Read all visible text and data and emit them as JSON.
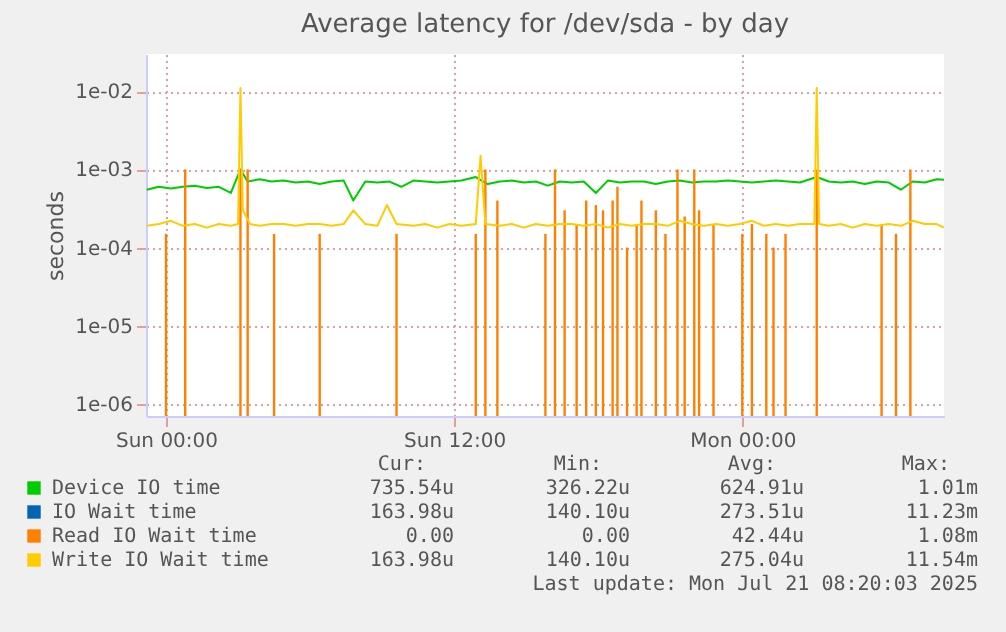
{
  "chart_data": {
    "type": "line",
    "title": "Average latency for /dev/sda - by day",
    "ylabel": "seconds",
    "log": "y",
    "grid": true,
    "legend": "bottom",
    "line_style": "solid",
    "marker": "none",
    "xlim": [
      "2025-07-19T23:10",
      "2025-07-21T08:24"
    ],
    "xticks": [
      {
        "value": "2025-07-20T00:00",
        "label": "Sun 00:00"
      },
      {
        "value": "2025-07-20T12:00",
        "label": "Sun 12:00"
      },
      {
        "value": "2025-07-21T00:00",
        "label": "Mon 00:00"
      }
    ],
    "ylim": [
      7e-07,
      0.03
    ],
    "yticks": [
      {
        "value": 1e-06,
        "label": "1e-06"
      },
      {
        "value": 1e-05,
        "label": "1e-05"
      },
      {
        "value": 0.0001,
        "label": "1e-04"
      },
      {
        "value": 0.001,
        "label": "1e-03"
      },
      {
        "value": 0.01,
        "label": "1e-02"
      }
    ],
    "series": [
      {
        "name": "Device IO time",
        "color": "#00cc00",
        "x": [
          "2025-07-19T23:12",
          "2025-07-19T23:42",
          "2025-07-20T00:12",
          "2025-07-20T00:42",
          "2025-07-20T01:12",
          "2025-07-20T01:42",
          "2025-07-20T02:12",
          "2025-07-20T02:42",
          "2025-07-20T03:06",
          "2025-07-20T03:24",
          "2025-07-20T03:54",
          "2025-07-20T04:24",
          "2025-07-20T04:54",
          "2025-07-20T05:24",
          "2025-07-20T05:54",
          "2025-07-20T06:24",
          "2025-07-20T06:54",
          "2025-07-20T07:24",
          "2025-07-20T07:48",
          "2025-07-20T08:18",
          "2025-07-20T08:48",
          "2025-07-20T09:18",
          "2025-07-20T09:48",
          "2025-07-20T10:18",
          "2025-07-20T10:48",
          "2025-07-20T11:18",
          "2025-07-20T11:48",
          "2025-07-20T12:18",
          "2025-07-20T12:54",
          "2025-07-20T13:24",
          "2025-07-20T13:54",
          "2025-07-20T14:24",
          "2025-07-20T14:54",
          "2025-07-20T15:24",
          "2025-07-20T15:54",
          "2025-07-20T16:24",
          "2025-07-20T16:54",
          "2025-07-20T17:24",
          "2025-07-20T17:54",
          "2025-07-20T18:24",
          "2025-07-20T18:54",
          "2025-07-20T19:24",
          "2025-07-20T19:54",
          "2025-07-20T20:24",
          "2025-07-20T20:54",
          "2025-07-20T21:24",
          "2025-07-20T21:54",
          "2025-07-20T22:24",
          "2025-07-20T22:54",
          "2025-07-20T23:24",
          "2025-07-20T23:54",
          "2025-07-21T00:24",
          "2025-07-21T00:54",
          "2025-07-21T01:24",
          "2025-07-21T01:54",
          "2025-07-21T02:24",
          "2025-07-21T03:06",
          "2025-07-21T03:36",
          "2025-07-21T04:06",
          "2025-07-21T04:36",
          "2025-07-21T05:06",
          "2025-07-21T05:36",
          "2025-07-21T06:06",
          "2025-07-21T06:36",
          "2025-07-21T07:06",
          "2025-07-21T07:36",
          "2025-07-21T08:06",
          "2025-07-21T08:24"
        ],
        "values": [
          0.00055,
          0.0006,
          0.00057,
          0.0006,
          0.00062,
          0.00058,
          0.0006,
          0.0005,
          0.001,
          0.0007,
          0.00075,
          0.0007,
          0.00072,
          0.00068,
          0.0007,
          0.00065,
          0.0007,
          0.00072,
          0.0004,
          0.0007,
          0.00068,
          0.0007,
          0.0006,
          0.00072,
          0.0007,
          0.00068,
          0.0007,
          0.00072,
          0.0008,
          0.00065,
          0.0007,
          0.00072,
          0.00068,
          0.0007,
          0.00062,
          0.0007,
          0.00068,
          0.0007,
          0.0005,
          0.00072,
          0.00068,
          0.0007,
          0.0007,
          0.00065,
          0.0007,
          0.00072,
          0.00068,
          0.0007,
          0.0007,
          0.00072,
          0.0007,
          0.00068,
          0.0007,
          0.00072,
          0.0007,
          0.00068,
          0.0008,
          0.0007,
          0.00068,
          0.0007,
          0.00065,
          0.0007,
          0.00068,
          0.00055,
          0.0007,
          0.00068,
          0.00075,
          0.00074
        ]
      },
      {
        "name": "IO Wait time",
        "color": "#0066b3"
      },
      {
        "name": "Read IO Wait time",
        "color": "#ff8000",
        "type": "bar",
        "x": [
          "2025-07-20T00:00",
          "2025-07-20T00:48",
          "2025-07-20T03:06",
          "2025-07-20T03:24",
          "2025-07-20T04:30",
          "2025-07-20T06:24",
          "2025-07-20T09:36",
          "2025-07-20T12:54",
          "2025-07-20T13:18",
          "2025-07-20T13:48",
          "2025-07-20T15:48",
          "2025-07-20T16:12",
          "2025-07-20T16:36",
          "2025-07-20T17:06",
          "2025-07-20T17:30",
          "2025-07-20T17:54",
          "2025-07-20T18:12",
          "2025-07-20T18:36",
          "2025-07-20T18:48",
          "2025-07-20T19:12",
          "2025-07-20T19:36",
          "2025-07-20T19:48",
          "2025-07-20T20:24",
          "2025-07-20T20:48",
          "2025-07-20T21:18",
          "2025-07-20T21:36",
          "2025-07-20T22:00",
          "2025-07-20T22:12",
          "2025-07-20T22:48",
          "2025-07-21T00:00",
          "2025-07-21T00:24",
          "2025-07-21T01:00",
          "2025-07-21T01:18",
          "2025-07-21T01:48",
          "2025-07-21T03:06",
          "2025-07-21T05:48",
          "2025-07-21T06:24",
          "2025-07-21T07:00"
        ],
        "values": [
          0.00015,
          0.001,
          0.001,
          0.001,
          0.00015,
          0.00015,
          0.00015,
          0.00015,
          0.001,
          0.0004,
          0.00015,
          0.001,
          0.0003,
          0.0002,
          0.0004,
          0.00035,
          0.0003,
          0.0004,
          0.0006,
          0.0001,
          0.0002,
          0.0004,
          0.0003,
          0.00015,
          0.001,
          0.00025,
          0.001,
          0.0003,
          0.0002,
          0.00015,
          0.0002,
          0.00015,
          0.0001,
          0.00015,
          0.001,
          0.0002,
          0.00015,
          0.001
        ]
      },
      {
        "name": "Write IO Wait time",
        "color": "#ffcc00",
        "x": [
          "2025-07-19T23:12",
          "2025-07-19T23:42",
          "2025-07-20T00:12",
          "2025-07-20T00:42",
          "2025-07-20T01:12",
          "2025-07-20T01:42",
          "2025-07-20T02:12",
          "2025-07-20T02:42",
          "2025-07-20T03:00",
          "2025-07-20T03:06",
          "2025-07-20T03:12",
          "2025-07-20T03:30",
          "2025-07-20T03:54",
          "2025-07-20T04:24",
          "2025-07-20T04:54",
          "2025-07-20T05:24",
          "2025-07-20T05:54",
          "2025-07-20T06:24",
          "2025-07-20T06:54",
          "2025-07-20T07:24",
          "2025-07-20T07:48",
          "2025-07-20T08:18",
          "2025-07-20T08:48",
          "2025-07-20T09:12",
          "2025-07-20T09:36",
          "2025-07-20T10:18",
          "2025-07-20T10:48",
          "2025-07-20T11:18",
          "2025-07-20T11:48",
          "2025-07-20T12:18",
          "2025-07-20T12:54",
          "2025-07-20T13:06",
          "2025-07-20T13:18",
          "2025-07-20T13:54",
          "2025-07-20T14:24",
          "2025-07-20T14:54",
          "2025-07-20T15:24",
          "2025-07-20T15:54",
          "2025-07-20T16:24",
          "2025-07-20T16:54",
          "2025-07-20T17:24",
          "2025-07-20T17:54",
          "2025-07-20T18:24",
          "2025-07-20T18:54",
          "2025-07-20T19:24",
          "2025-07-20T19:54",
          "2025-07-20T20:24",
          "2025-07-20T20:54",
          "2025-07-20T21:24",
          "2025-07-20T21:54",
          "2025-07-20T22:24",
          "2025-07-20T22:54",
          "2025-07-20T23:24",
          "2025-07-20T23:54",
          "2025-07-21T00:24",
          "2025-07-21T00:54",
          "2025-07-21T01:24",
          "2025-07-21T01:54",
          "2025-07-21T02:24",
          "2025-07-21T03:00",
          "2025-07-21T03:06",
          "2025-07-21T03:12",
          "2025-07-21T03:36",
          "2025-07-21T04:06",
          "2025-07-21T04:36",
          "2025-07-21T05:06",
          "2025-07-21T05:36",
          "2025-07-21T06:06",
          "2025-07-21T06:36",
          "2025-07-21T07:06",
          "2025-07-21T07:36",
          "2025-07-21T08:06",
          "2025-07-21T08:24"
        ],
        "values": [
          0.00019,
          0.0002,
          0.00022,
          0.00019,
          0.0002,
          0.00018,
          0.0002,
          0.00019,
          0.0002,
          0.011,
          0.0003,
          0.0002,
          0.00019,
          0.0002,
          0.0002,
          0.00019,
          0.0002,
          0.0002,
          0.00019,
          0.0002,
          0.0003,
          0.0002,
          0.00019,
          0.00035,
          0.0002,
          0.00019,
          0.0002,
          0.00018,
          0.0002,
          0.00019,
          0.0002,
          0.0015,
          0.0002,
          0.00019,
          0.0002,
          0.00018,
          0.0002,
          0.00019,
          0.0002,
          0.0002,
          0.00019,
          0.0002,
          0.00018,
          0.0002,
          0.00019,
          0.0002,
          0.0002,
          0.00019,
          0.00022,
          0.0002,
          0.00019,
          0.0002,
          0.00019,
          0.0002,
          0.00022,
          0.00019,
          0.0002,
          0.00019,
          0.0002,
          0.0002,
          0.011,
          0.0002,
          0.00019,
          0.0002,
          0.00018,
          0.0002,
          0.00019,
          0.0002,
          0.00019,
          0.00022,
          0.0002,
          0.0002,
          0.00018
        ]
      }
    ],
    "annotations": [
      "Cur:",
      "Min:",
      "Avg:",
      "Max:",
      "735.54u",
      "326.22u",
      "624.91u",
      "1.01m",
      "163.98u",
      "140.10u",
      "273.51u",
      "11.23m",
      "0.00",
      "0.00",
      "42.44u",
      "1.08m",
      "163.98u",
      "140.10u",
      "275.04u",
      "11.54m",
      "Last update: Mon Jul 21 08:20:03 2025"
    ]
  }
}
